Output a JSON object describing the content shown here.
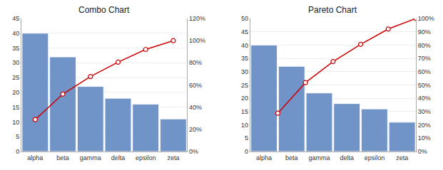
{
  "chart_data": [
    {
      "type": "bar",
      "title": "Combo Chart",
      "categories": [
        "alpha",
        "beta",
        "gamma",
        "delta",
        "epsilon",
        "zeta"
      ],
      "series": [
        {
          "type": "bar",
          "color": "#7094c8",
          "values": [
            40,
            32,
            22,
            18,
            16,
            11
          ]
        },
        {
          "type": "line",
          "axis": "y2",
          "color": "#cc0000",
          "marker": "circle",
          "values": [
            0.2877697841726619,
            0.5179856115107914,
            0.6762589928057554,
            0.8057553956834532,
            0.920863309352518,
            1.0
          ]
        }
      ],
      "ylim": [
        0,
        45
      ],
      "yticks": [
        0,
        5,
        10,
        15,
        20,
        25,
        30,
        35,
        40,
        45
      ],
      "y2lim": [
        0,
        1.2
      ],
      "y2ticks": [
        {
          "value": 0,
          "label": "0%"
        },
        {
          "value": 0.2,
          "label": "20%"
        },
        {
          "value": 0.4,
          "label": "40%"
        },
        {
          "value": 0.6,
          "label": "60%"
        },
        {
          "value": 0.8,
          "label": "80%"
        },
        {
          "value": 1.0,
          "label": "100%"
        },
        {
          "value": 1.2,
          "label": "120%"
        }
      ],
      "grid": true
    },
    {
      "type": "pareto",
      "title": "Pareto Chart",
      "categories": [
        "alpha",
        "beta",
        "gamma",
        "delta",
        "epsilon",
        "zeta"
      ],
      "series": [
        {
          "type": "bar",
          "color": "#7094c8",
          "values": [
            40,
            32,
            22,
            18,
            16,
            11
          ]
        },
        {
          "type": "line",
          "axis": "y2",
          "color": "#cc0000",
          "marker": "circle",
          "values": [
            0.2877697841726619,
            0.5179856115107914,
            0.6762589928057554,
            0.8057553956834532,
            0.920863309352518,
            1.0
          ]
        }
      ],
      "ylim": [
        0,
        50
      ],
      "yticks": [
        0,
        5,
        10,
        15,
        20,
        25,
        30,
        35,
        40,
        45,
        50
      ],
      "y2lim": [
        0,
        1.0
      ],
      "y2ticks": [
        {
          "value": 0,
          "label": "0%"
        },
        {
          "value": 0.1,
          "label": "10%"
        },
        {
          "value": 0.2,
          "label": "20%"
        },
        {
          "value": 0.3,
          "label": "30%"
        },
        {
          "value": 0.4,
          "label": "40%"
        },
        {
          "value": 0.5,
          "label": "50%"
        },
        {
          "value": 0.6,
          "label": "60%"
        },
        {
          "value": 0.7,
          "label": "70%"
        },
        {
          "value": 0.8,
          "label": "80%"
        },
        {
          "value": 0.9,
          "label": "90%"
        },
        {
          "value": 1.0,
          "label": "100%"
        }
      ],
      "grid": true
    }
  ]
}
